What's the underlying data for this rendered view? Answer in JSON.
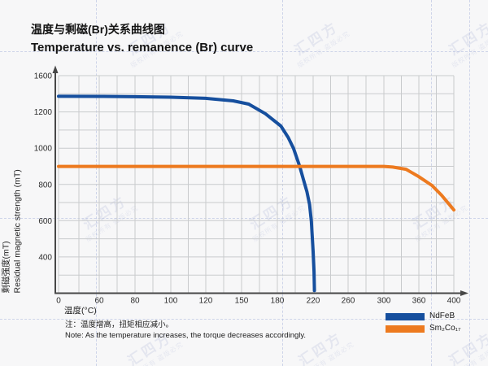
{
  "header": {
    "title_zh": "温度与剩磁(Br)关系曲线图",
    "title_en": "Temperature vs. remanence (Br) curve"
  },
  "note": {
    "line1": "注：温度增高，扭矩相应减小。",
    "line2": "Note: As the temperature increases, the torque decreases accordingly."
  },
  "legend": [
    {
      "label": "NdFeB",
      "color": "#164f9e"
    },
    {
      "label": "Sm₂Co₁₇",
      "color": "#ed7a1f"
    }
  ],
  "watermark": {
    "text_main": "汇四方",
    "text_sub": "版权所有 盗版必究"
  },
  "colors": {
    "background": "#f7f7f8",
    "grid": "#c9cbcd",
    "axis": "#474747",
    "tick_text": "#2b2b2b",
    "ndfeb": "#164f9e",
    "smco": "#ed7a1f"
  },
  "chart_data": {
    "type": "line",
    "title": "温度与剩磁(Br)关系曲线图 / Temperature vs. remanence (Br) curve",
    "xlabel": "温度(°C)",
    "ylabel_zh": "剩磁强度(mT)",
    "ylabel_en": "Residual magnetic strength (mT)",
    "x_ticks": [
      0,
      60,
      80,
      100,
      120,
      150,
      180,
      220,
      260,
      300,
      360,
      400
    ],
    "y_ticks": [
      1600,
      1200,
      1000,
      800,
      600,
      400
    ],
    "ylim": [
      0,
      1600
    ],
    "xlim": [
      0,
      400
    ],
    "grid": true,
    "legend_position": "bottom-right",
    "series": [
      {
        "name": "NdFeB",
        "color": "#164f9e",
        "points": [
          [
            0,
            1372
          ],
          [
            60,
            1371
          ],
          [
            80,
            1368
          ],
          [
            100,
            1362
          ],
          [
            120,
            1350
          ],
          [
            143,
            1322
          ],
          [
            156,
            1286
          ],
          [
            170,
            1190
          ],
          [
            184,
            1122
          ],
          [
            192,
            1060
          ],
          [
            198,
            1000
          ],
          [
            205,
            900
          ],
          [
            209,
            830
          ],
          [
            213,
            762
          ],
          [
            216,
            690
          ],
          [
            218,
            598
          ],
          [
            220,
            430
          ],
          [
            221,
            240
          ],
          [
            221.5,
            30
          ]
        ]
      },
      {
        "name": "Sm2Co17",
        "color": "#ed7a1f",
        "points": [
          [
            0,
            900
          ],
          [
            60,
            900
          ],
          [
            120,
            900
          ],
          [
            180,
            900
          ],
          [
            240,
            900
          ],
          [
            300,
            900
          ],
          [
            315,
            896
          ],
          [
            338,
            884
          ],
          [
            359,
            845
          ],
          [
            375,
            795
          ],
          [
            386,
            741
          ],
          [
            400,
            660
          ]
        ]
      }
    ]
  }
}
